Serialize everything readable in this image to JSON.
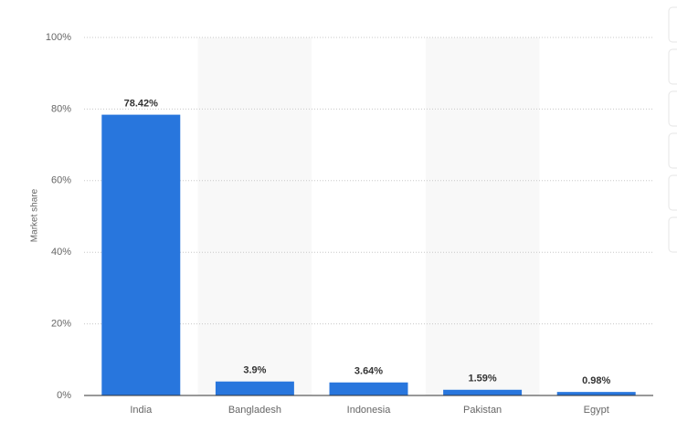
{
  "chart_data": {
    "type": "bar",
    "y_label": "Market share",
    "categories": [
      "India",
      "Bangladesh",
      "Indonesia",
      "Pakistan",
      "Egypt"
    ],
    "values": [
      78.42,
      3.9,
      3.64,
      1.59,
      0.98
    ],
    "value_labels": [
      "78.42%",
      "3.9%",
      "3.64%",
      "1.59%",
      "0.98%"
    ],
    "color": "#2876dd",
    "ylim": [
      0,
      100
    ],
    "yticks": [
      {
        "value": 0,
        "label": "0%"
      },
      {
        "value": 20,
        "label": "20%"
      },
      {
        "value": 40,
        "label": "40%"
      },
      {
        "value": 60,
        "label": "60%"
      },
      {
        "value": 80,
        "label": "80%"
      },
      {
        "value": 100,
        "label": "100%"
      }
    ],
    "grid": true
  }
}
